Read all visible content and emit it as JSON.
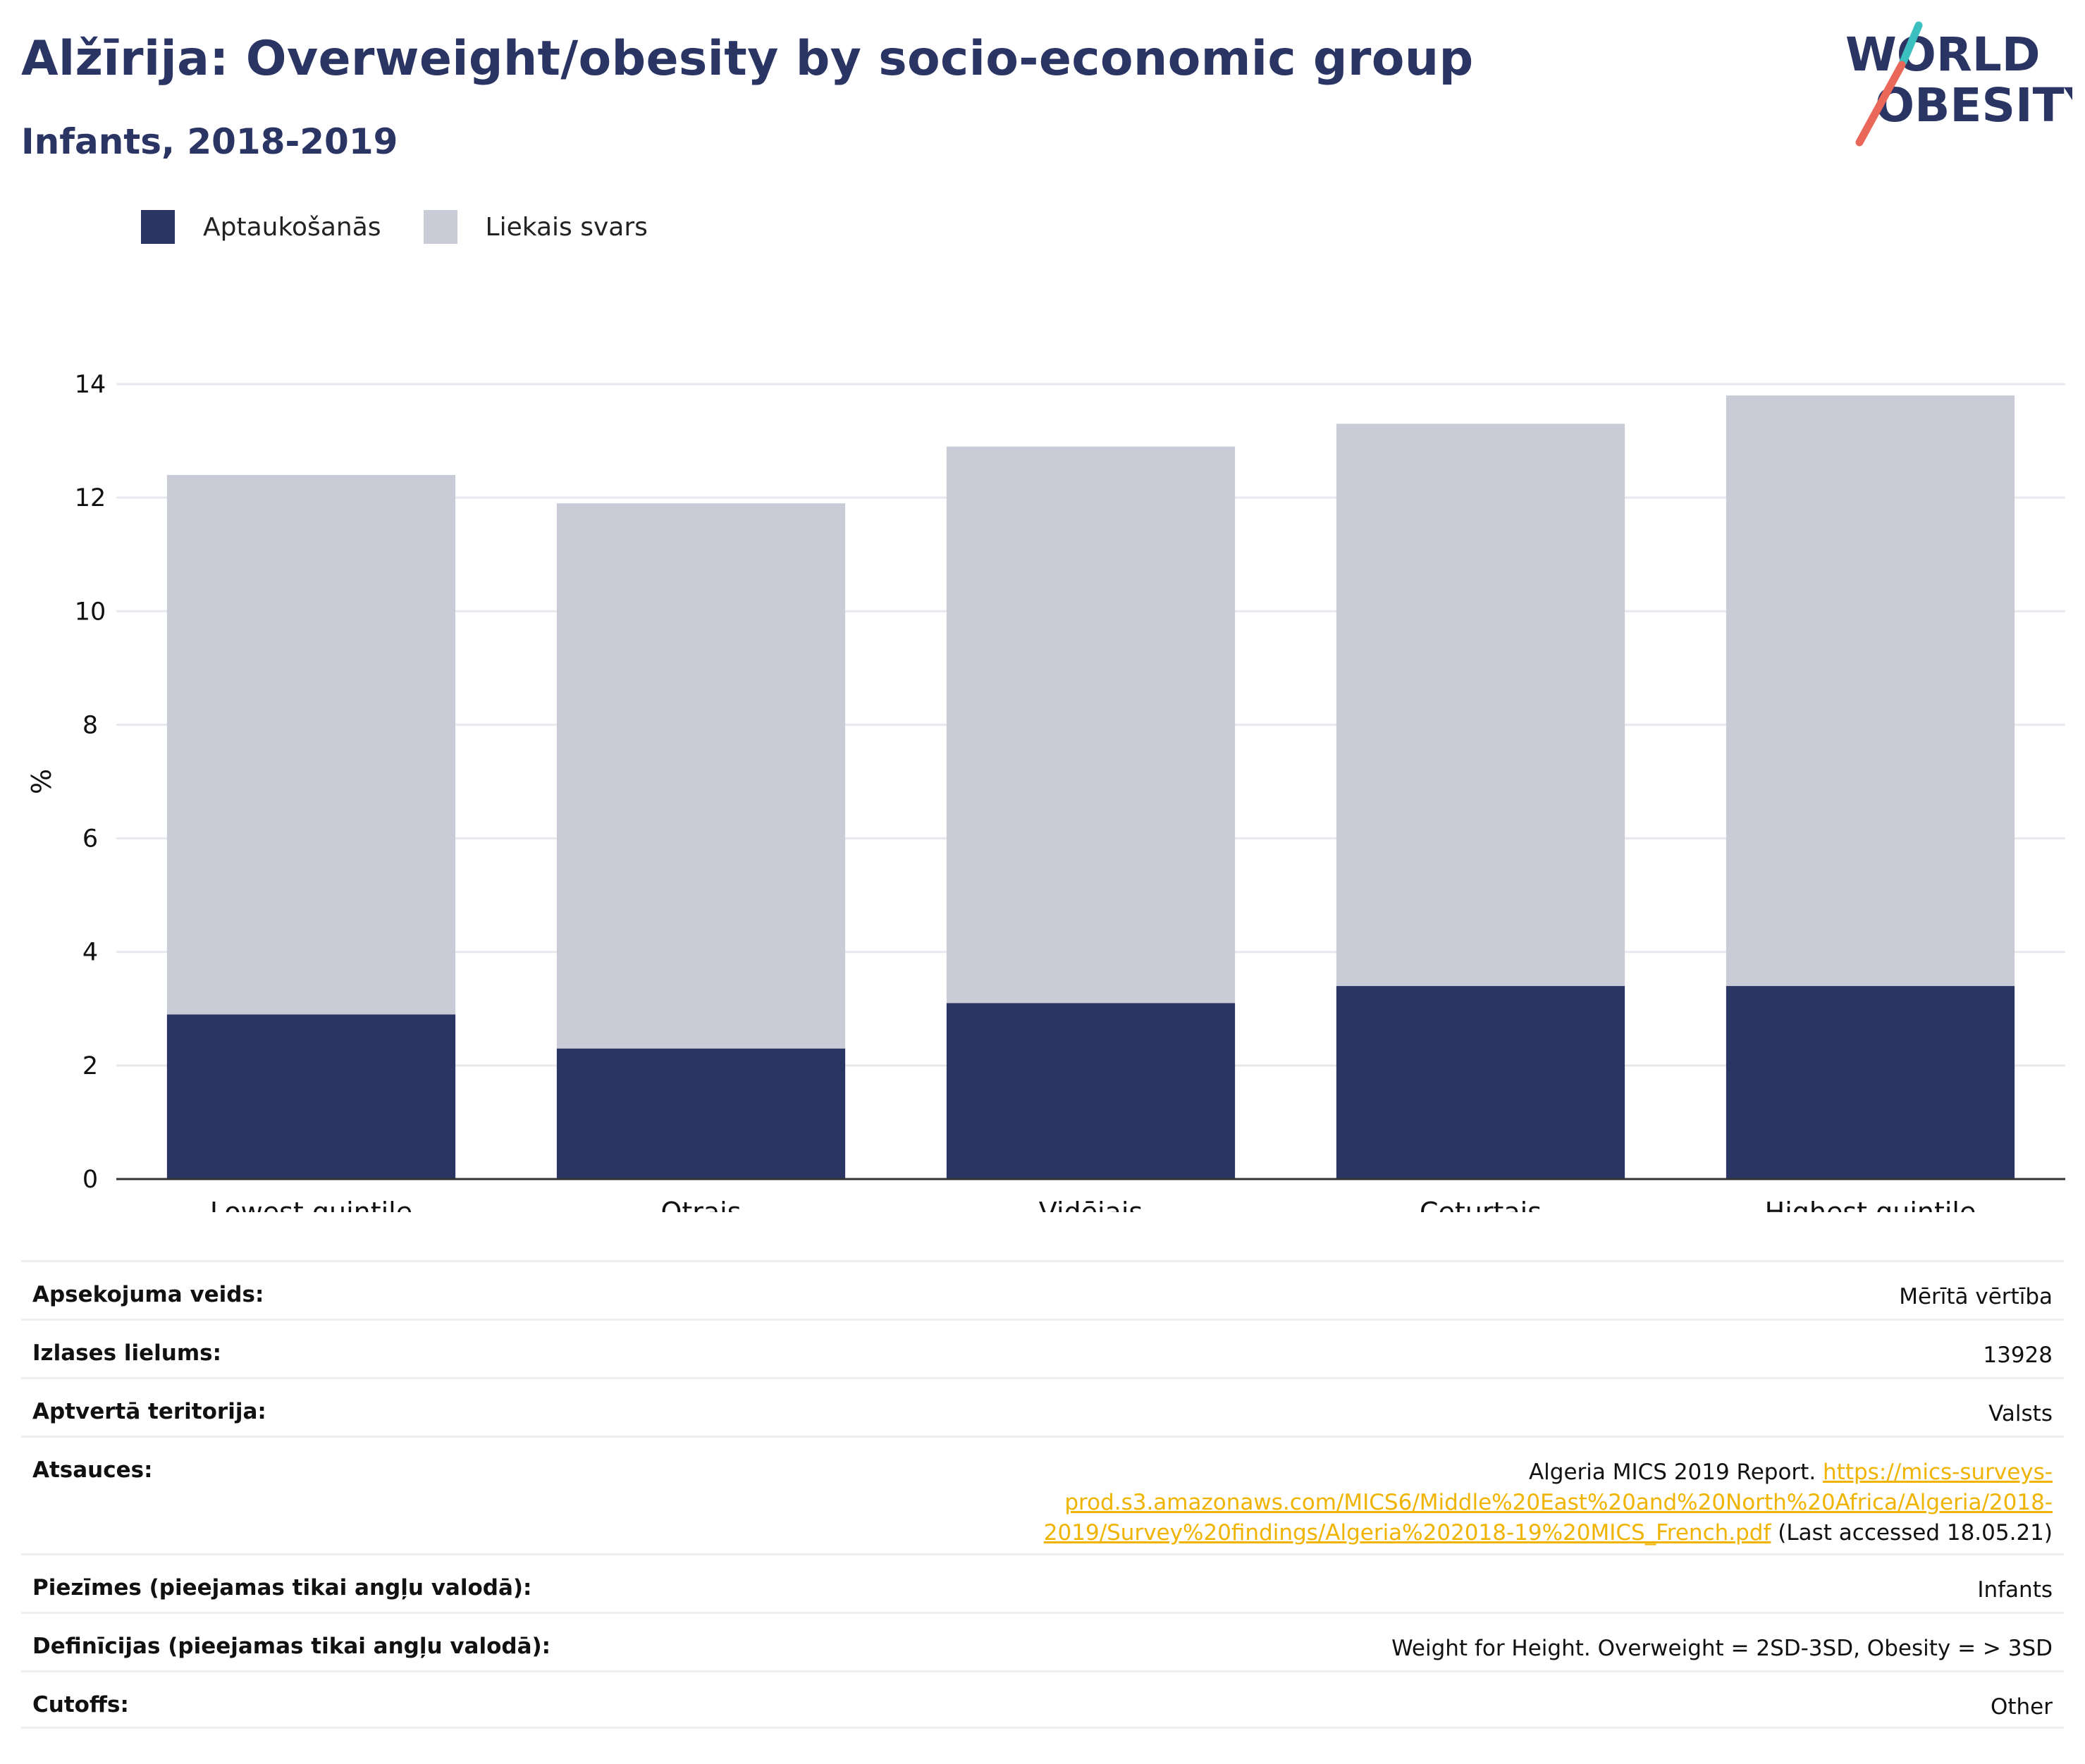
{
  "header": {
    "title": "Alžīrija: Overweight/obesity by socio-economic group",
    "subtitle": "Infants, 2018-2019"
  },
  "logo": {
    "line1": "WORLD",
    "line2": "OBESITY"
  },
  "legend": [
    {
      "label": "Aptaukošanās",
      "color": "#2b3564"
    },
    {
      "label": "Liekais svars",
      "color": "#c9cbd7"
    }
  ],
  "chart_data": {
    "type": "bar",
    "stacked": true,
    "categories": [
      "Lowest quintile",
      "Otrais",
      "Vidējais",
      "Ceturtais",
      "Highest quintile"
    ],
    "series": [
      {
        "name": "Aptaukošanās",
        "values": [
          2.9,
          2.3,
          3.1,
          3.4,
          3.4
        ],
        "color": "#2b3564"
      },
      {
        "name": "Liekais svars",
        "values": [
          9.5,
          9.6,
          9.8,
          9.9,
          10.4
        ],
        "color": "#c9cbd7"
      }
    ],
    "ylabel": "%",
    "ylim": [
      0,
      14
    ],
    "yticks": [
      0,
      2,
      4,
      6,
      8,
      10,
      12,
      14
    ],
    "grid": true,
    "legend_position": "top-left"
  },
  "info": {
    "survey_type": {
      "label": "Apsekojuma veids:",
      "value": "Mērītā vērtība"
    },
    "sample_size": {
      "label": "Izlases lielums:",
      "value": "13928"
    },
    "area": {
      "label": "Aptvertā teritorija:",
      "value": "Valsts"
    },
    "references": {
      "label": "Atsauces:",
      "text_before": "Algeria MICS 2019 Report. ",
      "link_text_1": "https://mics-surveys-",
      "link_text_2": "prod.s3.amazonaws.com/MICS6/Middle%20East%20and%20North%20Africa/Algeria/2018-",
      "link_text_3": "2019/Survey%20findings/Algeria%202018-19%20MICS_French.pdf",
      "text_after": " (Last accessed 18.05.21)"
    },
    "notes": {
      "label": "Piezīmes (pieejamas tikai angļu valodā):",
      "value": "Infants"
    },
    "definitions": {
      "label": "Definīcijas (pieejamas tikai angļu valodā):",
      "value": "Weight for Height. Overweight = 2SD-3SD, Obesity = > 3SD"
    },
    "cutoffs": {
      "label": "Cutoffs:",
      "value": "Other"
    }
  }
}
